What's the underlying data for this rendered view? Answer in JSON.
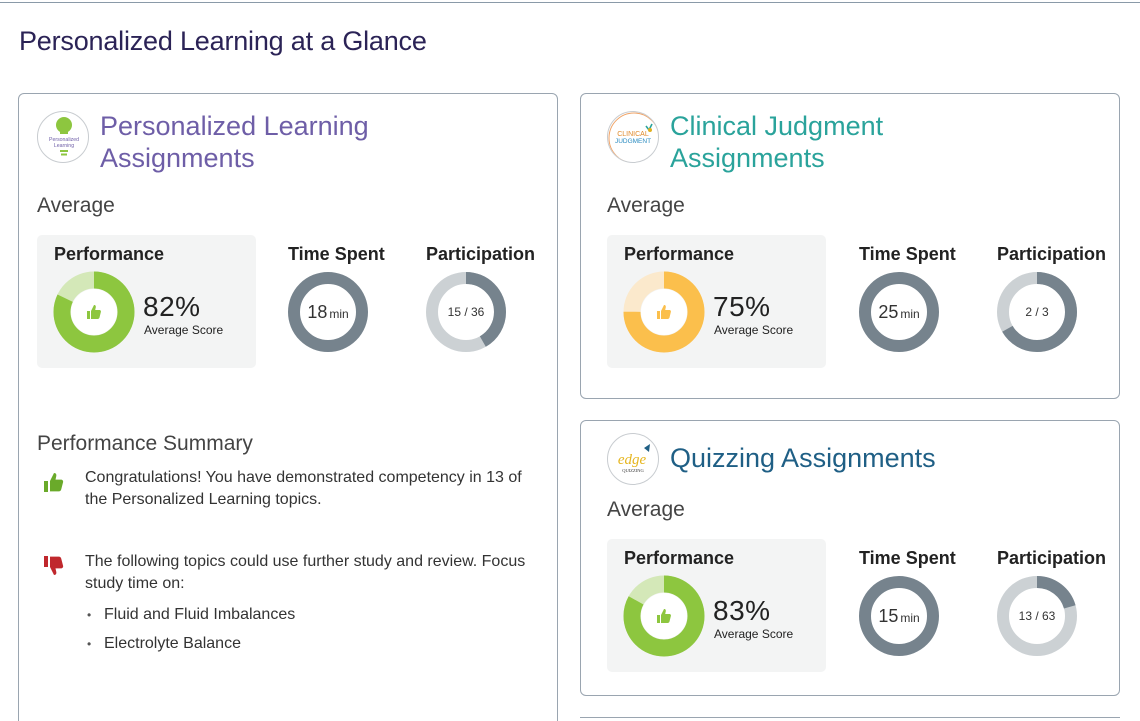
{
  "page_title": "Personalized Learning at a Glance",
  "common": {
    "average_label": "Average",
    "performance_label": "Performance",
    "time_label": "Time Spent",
    "participation_label": "Participation",
    "score_sub": "Average Score",
    "min_unit": "min"
  },
  "cards": {
    "pl": {
      "title_line1": "Personalized Learning",
      "title_line2": "Assignments",
      "logo_text_1": "Personalized",
      "logo_text_2": "Learning",
      "score_pct": "82%",
      "score_value": 0.82,
      "time_value": "18",
      "participation_text": "15 / 36",
      "participation_fraction": 0.4167
    },
    "cj": {
      "title_line1": "Clinical Judgment",
      "title_line2": "Assignments",
      "logo_text_1": "CLINICAL",
      "logo_text_2": "JUDGMENT",
      "score_pct": "75%",
      "score_value": 0.75,
      "time_value": "25",
      "participation_text": "2 / 3",
      "participation_fraction": 0.6667
    },
    "qz": {
      "title": "Quizzing Assignments",
      "logo_text_1": "edge",
      "logo_text_2": "QUIZZING",
      "score_pct": "83%",
      "score_value": 0.83,
      "time_value": "15",
      "participation_text": "13 / 63",
      "participation_fraction": 0.2063
    }
  },
  "summary": {
    "title": "Performance Summary",
    "positive": "Congratulations! You have demonstrated competency in 13 of the Personalized Learning topics.",
    "negative": "The following topics could use further study and review. Focus study time on:",
    "topics": [
      "Fluid and Fluid Imbalances",
      "Electrolyte Balance"
    ]
  },
  "colors": {
    "green": "#8dc63f",
    "green_light": "#d4e8b8",
    "orange": "#fbbf4c",
    "orange_light": "#fbe9cc",
    "time_ring": "#76838d",
    "part_fill": "#76838d",
    "part_track": "#ccd1d4",
    "thumb_up": "#6aaa2a",
    "thumb_down": "#c0282d"
  },
  "icons": {
    "thumb_up": "thumbs-up-icon",
    "thumb_down": "thumbs-down-icon"
  }
}
